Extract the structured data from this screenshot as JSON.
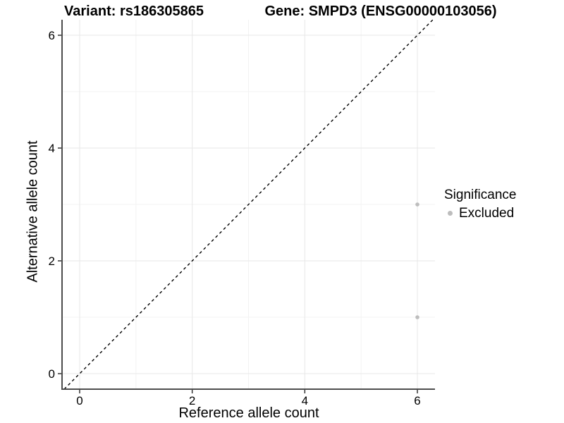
{
  "titles": {
    "variant": "Variant: rs186305865",
    "gene": "Gene: SMPD3 (ENSG00000103056)"
  },
  "legend": {
    "title": "Significance",
    "items": [
      {
        "label": "Excluded",
        "color": "#bdbdbd"
      }
    ]
  },
  "chart_data": {
    "type": "scatter",
    "title": "Variant: rs186305865 / Gene: SMPD3 (ENSG00000103056)",
    "xlabel": "Reference allele count",
    "ylabel": "Alternative allele count",
    "xlim": [
      -0.313,
      6.313
    ],
    "ylim": [
      -0.275,
      6.275
    ],
    "x_ticks": [
      0,
      2,
      4,
      6
    ],
    "y_ticks": [
      0,
      2,
      4,
      6
    ],
    "x_minor_ticks": [
      1,
      3,
      5
    ],
    "y_minor_ticks": [
      1,
      3,
      5
    ],
    "grid": "major+minor",
    "legend_position": "right",
    "series": [
      {
        "name": "Excluded",
        "color": "#bdbdbd",
        "points": [
          [
            6,
            3
          ],
          [
            6,
            1
          ]
        ]
      }
    ],
    "reference_line": {
      "kind": "identity",
      "slope": 1,
      "intercept": 0,
      "style": "dashed",
      "color": "#000000"
    }
  },
  "style": {
    "grid_major_color": "#e7e7e7",
    "grid_minor_color": "#f3f3f3",
    "axis_line_color": "#4d4d4d",
    "tick_color": "#333333",
    "point_radius": 2.8,
    "tick_font_size": 17
  }
}
